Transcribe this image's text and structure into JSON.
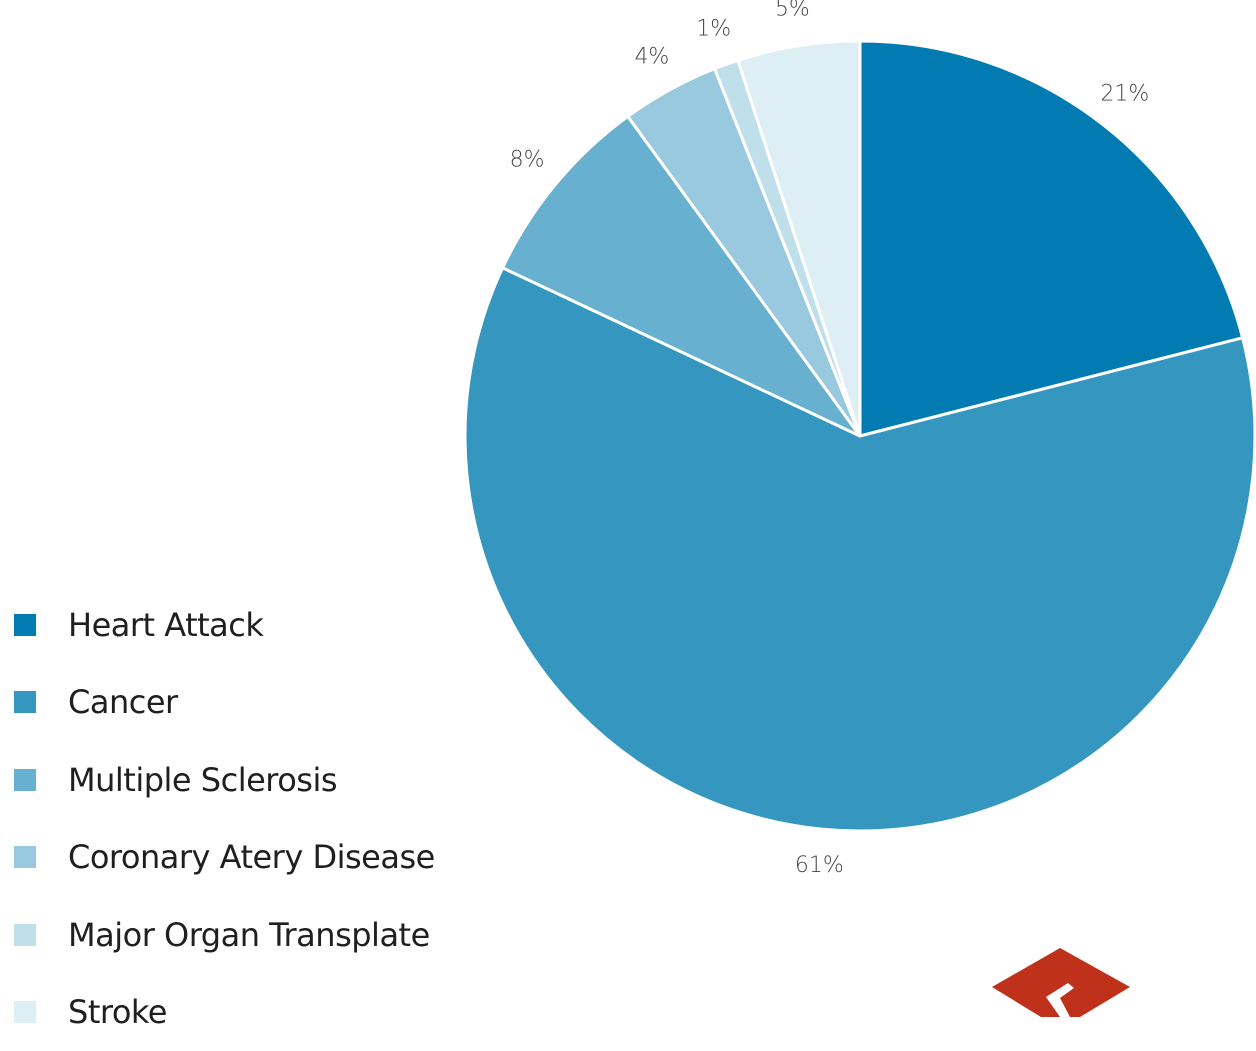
{
  "chart_data": {
    "type": "pie",
    "title": "",
    "start": "top",
    "direction": "clockwise",
    "legend_position": "left-bottom",
    "slices": [
      {
        "name": "Heart Attack",
        "value": 21,
        "label": "21%",
        "color": "#017bb1"
      },
      {
        "name": "Cancer",
        "value": 61,
        "label": "61%",
        "color": "#3596c0"
      },
      {
        "name": "Multiple Sclerosis",
        "value": 8,
        "label": "8%",
        "color": "#67b0cf"
      },
      {
        "name": "Coronary Atery Disease",
        "value": 4,
        "label": "4%",
        "color": "#99c9de"
      },
      {
        "name": "Major Organ Transplate",
        "value": 1,
        "label": "1%",
        "color": "#bfdfeb"
      },
      {
        "name": "Stroke",
        "value": 5,
        "label": "5%",
        "color": "#deeef5"
      }
    ]
  },
  "logo": {
    "icon": "diamond-logo-icon",
    "color": "#c0311b"
  }
}
